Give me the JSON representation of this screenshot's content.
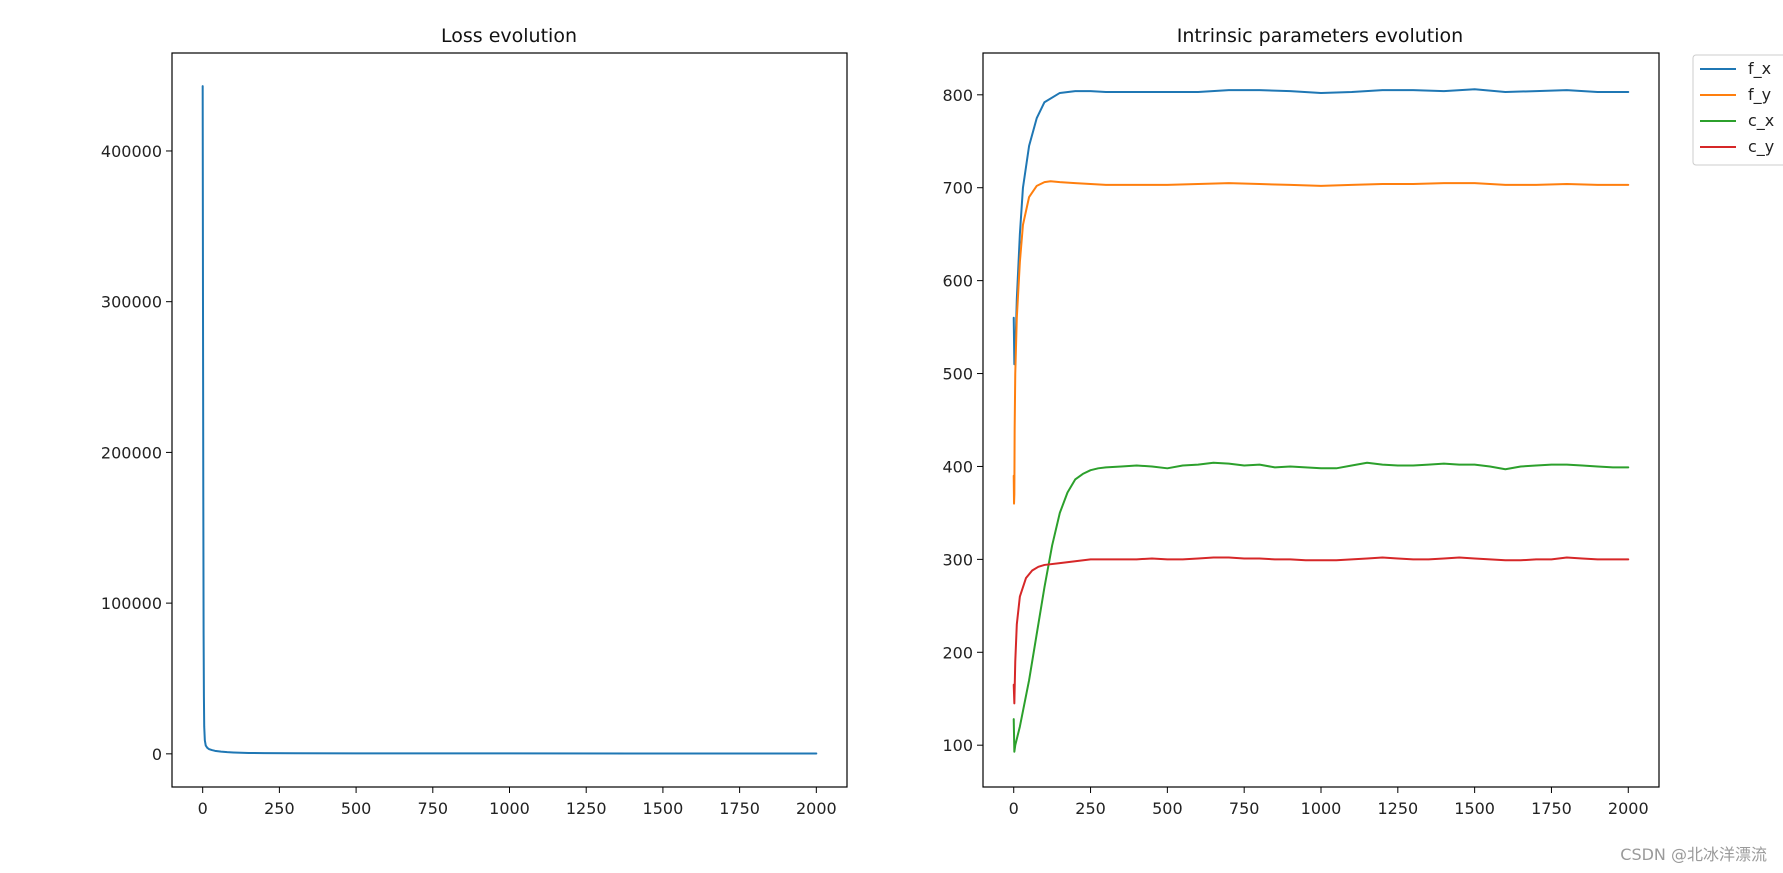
{
  "chart_data": [
    {
      "type": "line",
      "title": "Loss evolution",
      "xlabel": "",
      "ylabel": "",
      "xlim": [
        -100,
        2100
      ],
      "ylim": [
        -22000,
        465000
      ],
      "xticks": [
        0,
        250,
        500,
        750,
        1000,
        1250,
        1500,
        1750,
        2000
      ],
      "xtick_labels": [
        "0",
        "250",
        "500",
        "750",
        "1000",
        "1250",
        "1500",
        "1750",
        "2000"
      ],
      "yticks": [
        0,
        100000,
        200000,
        300000,
        400000
      ],
      "ytick_labels": [
        "0",
        "100000",
        "200000",
        "300000",
        "400000"
      ],
      "grid": false,
      "series": [
        {
          "color": "#1f77b4",
          "x": [
            0,
            1,
            2,
            3,
            4,
            5,
            7,
            10,
            15,
            20,
            30,
            40,
            60,
            80,
            100,
            150,
            200,
            300,
            500,
            1000,
            1500,
            2000
          ],
          "values": [
            443000,
            300000,
            170000,
            80000,
            38000,
            18000,
            9000,
            5500,
            4000,
            3200,
            2500,
            2000,
            1500,
            1100,
            900,
            600,
            450,
            350,
            300,
            280,
            260,
            250
          ]
        }
      ]
    },
    {
      "type": "line",
      "title": "Intrinsic parameters evolution",
      "xlabel": "",
      "ylabel": "",
      "xlim": [
        -100,
        2100
      ],
      "ylim": [
        55,
        845
      ],
      "xticks": [
        0,
        250,
        500,
        750,
        1000,
        1250,
        1500,
        1750,
        2000
      ],
      "xtick_labels": [
        "0",
        "250",
        "500",
        "750",
        "1000",
        "1250",
        "1500",
        "1750",
        "2000"
      ],
      "yticks": [
        100,
        200,
        300,
        400,
        500,
        600,
        700,
        800
      ],
      "ytick_labels": [
        "100",
        "200",
        "300",
        "400",
        "500",
        "600",
        "700",
        "800"
      ],
      "grid": false,
      "legend": "outside-top-right",
      "series": [
        {
          "name": "f_x",
          "color": "#1f77b4",
          "x": [
            0,
            2,
            5,
            10,
            20,
            30,
            50,
            75,
            100,
            150,
            200,
            250,
            300,
            400,
            500,
            600,
            700,
            800,
            900,
            1000,
            1100,
            1200,
            1300,
            1400,
            1500,
            1600,
            1700,
            1800,
            1900,
            2000
          ],
          "values": [
            560,
            510,
            520,
            580,
            650,
            700,
            745,
            775,
            792,
            802,
            804,
            804,
            803,
            803,
            803,
            803,
            805,
            805,
            804,
            802,
            803,
            805,
            805,
            804,
            806,
            803,
            804,
            805,
            803,
            803
          ]
        },
        {
          "name": "f_y",
          "color": "#ff7f0e",
          "x": [
            0,
            1,
            2,
            3,
            5,
            10,
            20,
            30,
            50,
            75,
            100,
            120,
            150,
            200,
            250,
            300,
            400,
            500,
            600,
            700,
            800,
            900,
            1000,
            1100,
            1200,
            1300,
            1400,
            1500,
            1600,
            1700,
            1800,
            1900,
            2000
          ],
          "values": [
            390,
            360,
            370,
            440,
            500,
            560,
            620,
            660,
            690,
            702,
            706,
            707,
            706,
            705,
            704,
            703,
            703,
            703,
            704,
            705,
            704,
            703,
            702,
            703,
            704,
            704,
            705,
            705,
            703,
            703,
            704,
            703,
            703
          ]
        },
        {
          "name": "c_x",
          "color": "#2ca02c",
          "x": [
            0,
            2,
            5,
            20,
            50,
            75,
            100,
            125,
            150,
            175,
            200,
            225,
            250,
            275,
            300,
            350,
            400,
            450,
            500,
            550,
            600,
            650,
            700,
            750,
            800,
            850,
            900,
            950,
            1000,
            1050,
            1100,
            1150,
            1200,
            1250,
            1300,
            1350,
            1400,
            1450,
            1500,
            1550,
            1600,
            1650,
            1700,
            1750,
            1800,
            1850,
            1900,
            1950,
            2000
          ],
          "values": [
            128,
            93,
            100,
            120,
            170,
            220,
            270,
            315,
            350,
            372,
            386,
            392,
            396,
            398,
            399,
            400,
            401,
            400,
            398,
            401,
            402,
            404,
            403,
            401,
            402,
            399,
            400,
            399,
            398,
            398,
            401,
            404,
            402,
            401,
            401,
            402,
            403,
            402,
            402,
            400,
            397,
            400,
            401,
            402,
            402,
            401,
            400,
            399,
            399
          ]
        },
        {
          "name": "c_y",
          "color": "#d62728",
          "x": [
            0,
            2,
            5,
            10,
            20,
            40,
            60,
            80,
            100,
            150,
            200,
            250,
            300,
            350,
            400,
            450,
            500,
            550,
            600,
            650,
            700,
            750,
            800,
            850,
            900,
            950,
            1000,
            1050,
            1100,
            1150,
            1200,
            1250,
            1300,
            1350,
            1400,
            1450,
            1500,
            1550,
            1600,
            1650,
            1700,
            1750,
            1800,
            1850,
            1900,
            1950,
            2000
          ],
          "values": [
            165,
            145,
            190,
            230,
            260,
            280,
            288,
            292,
            294,
            296,
            298,
            300,
            300,
            300,
            300,
            301,
            300,
            300,
            301,
            302,
            302,
            301,
            301,
            300,
            300,
            299,
            299,
            299,
            300,
            301,
            302,
            301,
            300,
            300,
            301,
            302,
            301,
            300,
            299,
            299,
            300,
            300,
            302,
            301,
            300,
            300,
            300
          ]
        }
      ]
    }
  ],
  "watermark": "CSDN @北冰洋漂流"
}
